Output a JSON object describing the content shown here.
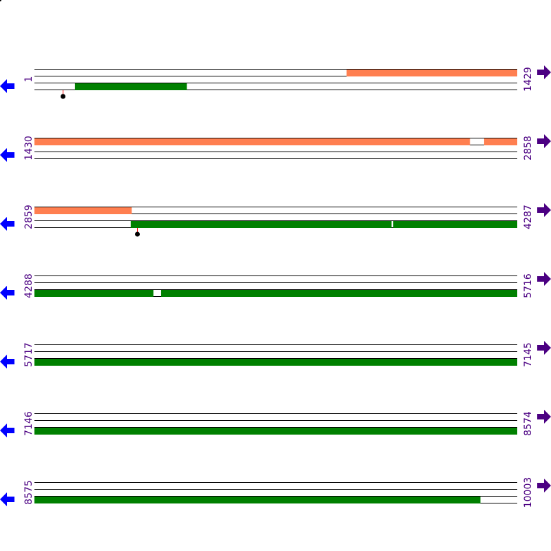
{
  "colors": {
    "frame_orange": "#ff7f50",
    "frame_green": "#008000",
    "left_arrow": "#0000ff",
    "right_arrow": "#4b0082",
    "label": "#4b0082",
    "marker_stem": "#ff0000"
  },
  "icons": {
    "left": "arrow-left-icon",
    "right": "arrow-right-icon"
  },
  "rows": [
    {
      "start": "1",
      "end": "1429",
      "s": 1,
      "e": 1429,
      "features": [
        {
          "track": 0,
          "from": 925,
          "to": 1429,
          "color": "orange"
        },
        {
          "track": 2,
          "from": 121,
          "to": 451,
          "color": "green"
        }
      ],
      "markers": [
        84
      ]
    },
    {
      "start": "1430",
      "end": "2858",
      "s": 1430,
      "e": 2858,
      "features": [
        {
          "track": 0,
          "from": 1430,
          "to": 2718,
          "color": "orange"
        },
        {
          "track": 0,
          "from": 2761,
          "to": 2858,
          "color": "orange"
        }
      ],
      "markers": []
    },
    {
      "start": "2859",
      "end": "4287",
      "s": 2859,
      "e": 4287,
      "features": [
        {
          "track": 0,
          "from": 2859,
          "to": 3146,
          "color": "orange"
        },
        {
          "track": 2,
          "from": 3144,
          "to": 3915,
          "color": "green"
        },
        {
          "track": 2,
          "from": 3921,
          "to": 4287,
          "color": "green"
        }
      ],
      "markers": [
        3163
      ]
    },
    {
      "start": "4288",
      "end": "5716",
      "s": 4288,
      "e": 5716,
      "features": [
        {
          "track": 2,
          "from": 4288,
          "to": 4639,
          "color": "green"
        },
        {
          "track": 2,
          "from": 4663,
          "to": 5716,
          "color": "green"
        }
      ],
      "markers": []
    },
    {
      "start": "5717",
      "end": "7145",
      "s": 5717,
      "e": 7145,
      "features": [
        {
          "track": 2,
          "from": 5717,
          "to": 7145,
          "color": "green"
        }
      ],
      "markers": []
    },
    {
      "start": "7146",
      "end": "8574",
      "s": 7146,
      "e": 8574,
      "features": [
        {
          "track": 2,
          "from": 7146,
          "to": 8574,
          "color": "green"
        }
      ],
      "markers": []
    },
    {
      "start": "8575",
      "end": "10003",
      "s": 8575,
      "e": 10003,
      "features": [
        {
          "track": 2,
          "from": 8575,
          "to": 9894,
          "color": "green"
        }
      ],
      "markers": []
    }
  ]
}
